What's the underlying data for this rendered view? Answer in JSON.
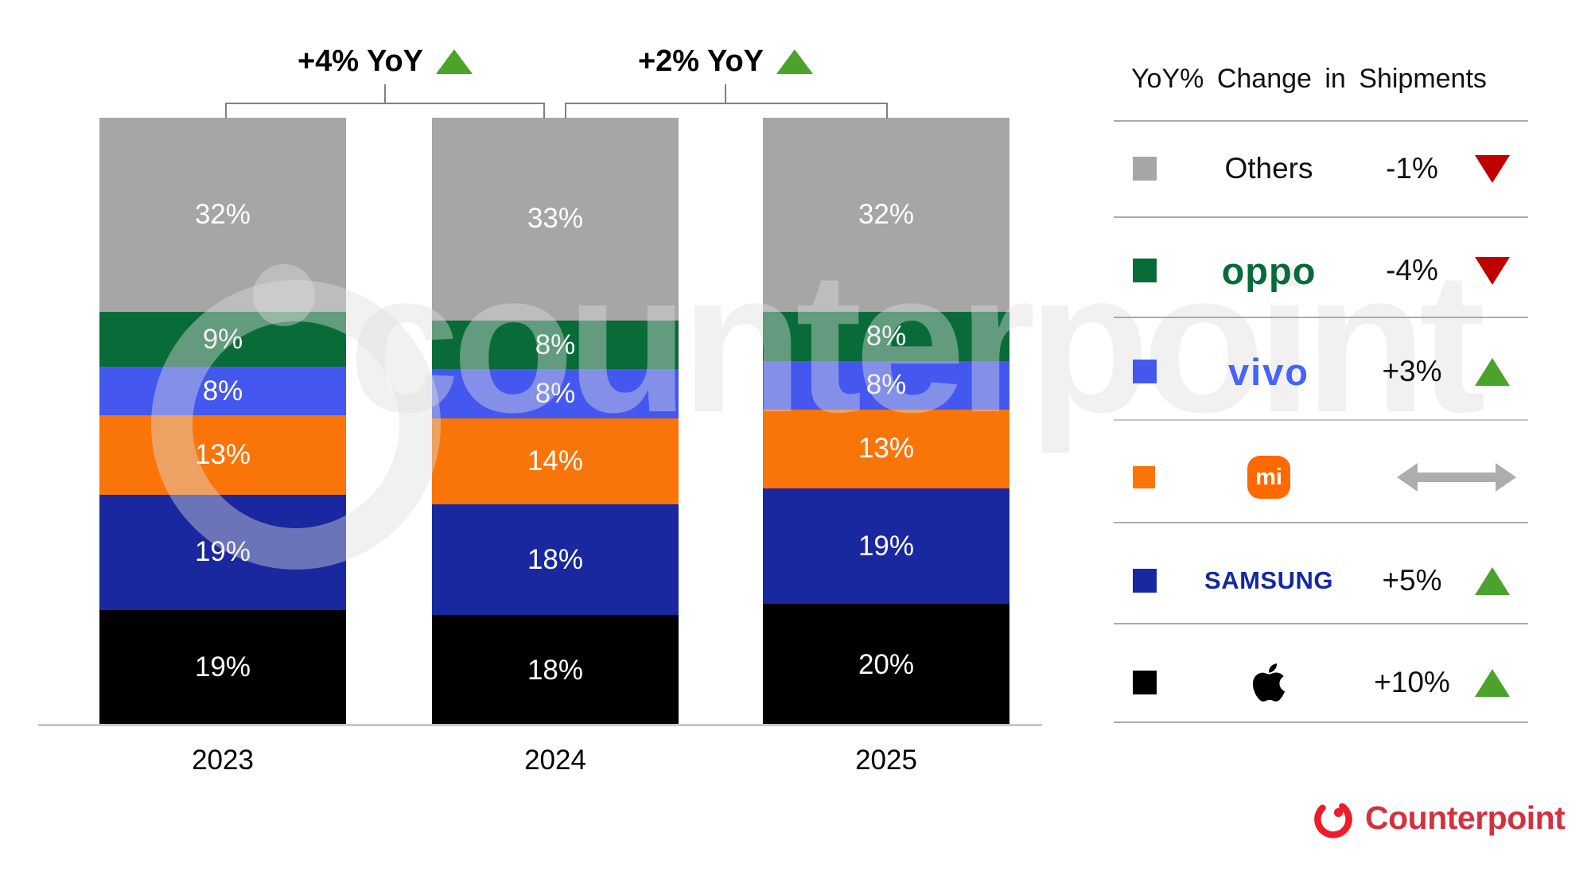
{
  "chart_data": {
    "type": "bar",
    "stacked": true,
    "percent_stacked": true,
    "unit": "%",
    "categories": [
      "2023",
      "2024",
      "2025"
    ],
    "series": [
      {
        "name": "Apple",
        "color": "#000000",
        "values": [
          19,
          18,
          20
        ]
      },
      {
        "name": "Samsung",
        "color": "#19289e",
        "values": [
          19,
          18,
          19
        ]
      },
      {
        "name": "Xiaomi",
        "color": "#f9750a",
        "values": [
          13,
          14,
          13
        ]
      },
      {
        "name": "vivo",
        "color": "#4458f0",
        "values": [
          8,
          8,
          8
        ]
      },
      {
        "name": "OPPO",
        "color": "#096c38",
        "values": [
          9,
          8,
          8
        ]
      },
      {
        "name": "Others",
        "color": "#a6a6a6",
        "values": [
          32,
          33,
          32
        ]
      }
    ],
    "value_labels_inside_segments": true,
    "ylim": [
      0,
      100
    ],
    "grid": false
  },
  "annotations": [
    {
      "label": "+4% YoY",
      "trend": "up",
      "between": [
        "2023",
        "2024"
      ]
    },
    {
      "label": "+2% YoY",
      "trend": "up",
      "between": [
        "2024",
        "2025"
      ]
    }
  ],
  "legend": {
    "title": "YoY% Change in Shipments",
    "rows": [
      {
        "brand": "Others",
        "wordmark": "Others",
        "color": "#a6a6a6",
        "change": "-1%",
        "trend": "down"
      },
      {
        "brand": "OPPO",
        "wordmark": "oppo",
        "color": "#096c38",
        "change": "-4%",
        "trend": "down"
      },
      {
        "brand": "vivo",
        "wordmark": "vivo",
        "color": "#4458f0",
        "change": "+3%",
        "trend": "up"
      },
      {
        "brand": "Xiaomi",
        "wordmark": "mi",
        "color": "#f9750a",
        "change": "",
        "trend": "flat"
      },
      {
        "brand": "SAMSUNG",
        "wordmark": "SAMSUNG",
        "color": "#19289e",
        "change": "+5%",
        "trend": "up"
      },
      {
        "brand": "Apple",
        "wordmark": "apple",
        "color": "#000000",
        "change": "+10%",
        "trend": "up"
      }
    ]
  },
  "footer": {
    "brand": "Counterpoint"
  },
  "watermark": {
    "text": "counterpoint"
  },
  "colors": {
    "trend_up": "#4ba32b",
    "trend_down": "#c00000",
    "flat_arrow": "#adadad",
    "axis_line": "#c9c9c9",
    "bracket_line": "#808080",
    "counterpoint_red": "#e22a33"
  }
}
